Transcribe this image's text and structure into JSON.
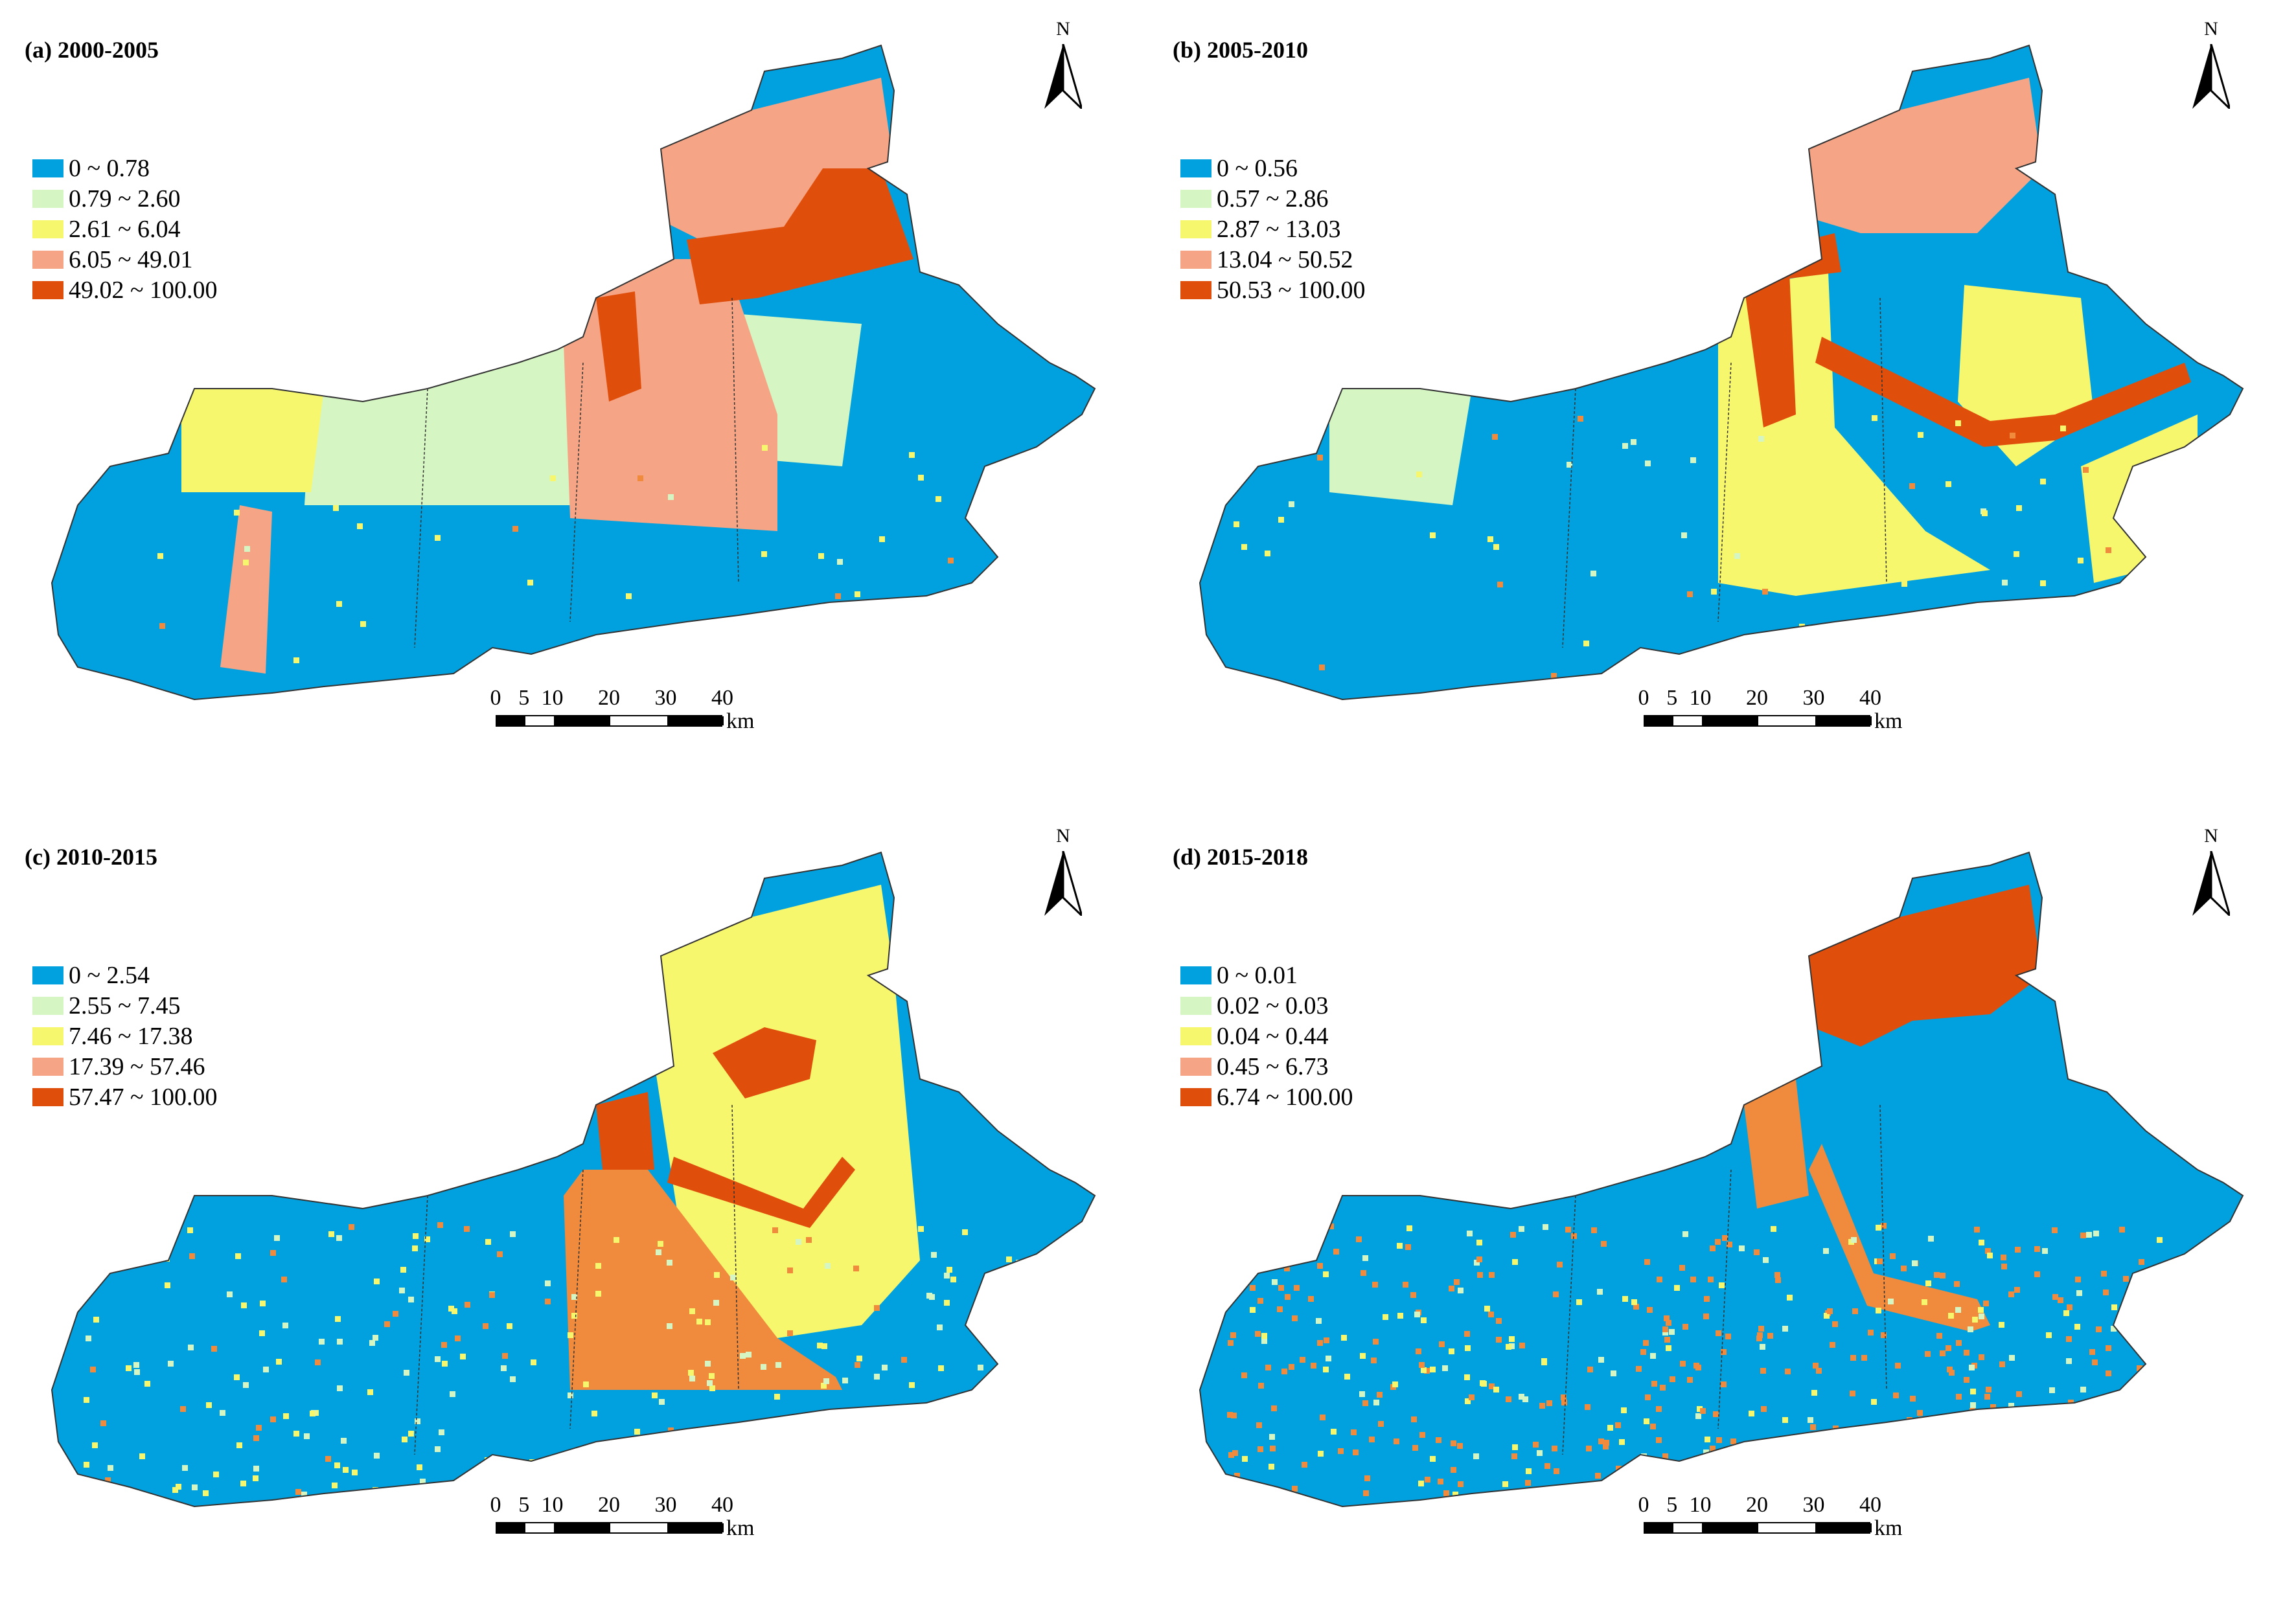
{
  "colors": {
    "class1": "#00A1DE",
    "class2": "#D5F6C2",
    "class3": "#F7F76E",
    "class4": "#F5A585",
    "class5": "#E04E0C",
    "outline": "#333333"
  },
  "north_arrow": {
    "label": "N",
    "icon": "north-arrow-icon"
  },
  "scale_bar": {
    "ticks": [
      "0",
      "5",
      "10",
      "20",
      "30",
      "40"
    ],
    "unit": "km"
  },
  "panels": [
    {
      "title": "(a) 2000-2005",
      "legend": [
        "0 ~ 0.78",
        "0.79 ~ 2.60",
        "2.61 ~ 6.04",
        "6.05 ~ 49.01",
        "49.02 ~ 100.00"
      ]
    },
    {
      "title": "(b) 2005-2010",
      "legend": [
        "0 ~ 0.56",
        "0.57 ~ 2.86",
        "2.87 ~ 13.03",
        "13.04 ~ 50.52",
        "50.53 ~ 100.00"
      ]
    },
    {
      "title": "(c) 2010-2015",
      "legend": [
        "0 ~ 2.54",
        "2.55 ~ 7.45",
        "7.46 ~ 17.38",
        "17.39 ~ 57.46",
        "57.47 ~ 100.00"
      ]
    },
    {
      "title": "(d) 2015-2018",
      "legend": [
        "0 ~ 0.01",
        "0.02 ~ 0.03",
        "0.04 ~ 0.44",
        "0.45 ~ 6.73",
        "6.74 ~ 100.00"
      ]
    }
  ]
}
